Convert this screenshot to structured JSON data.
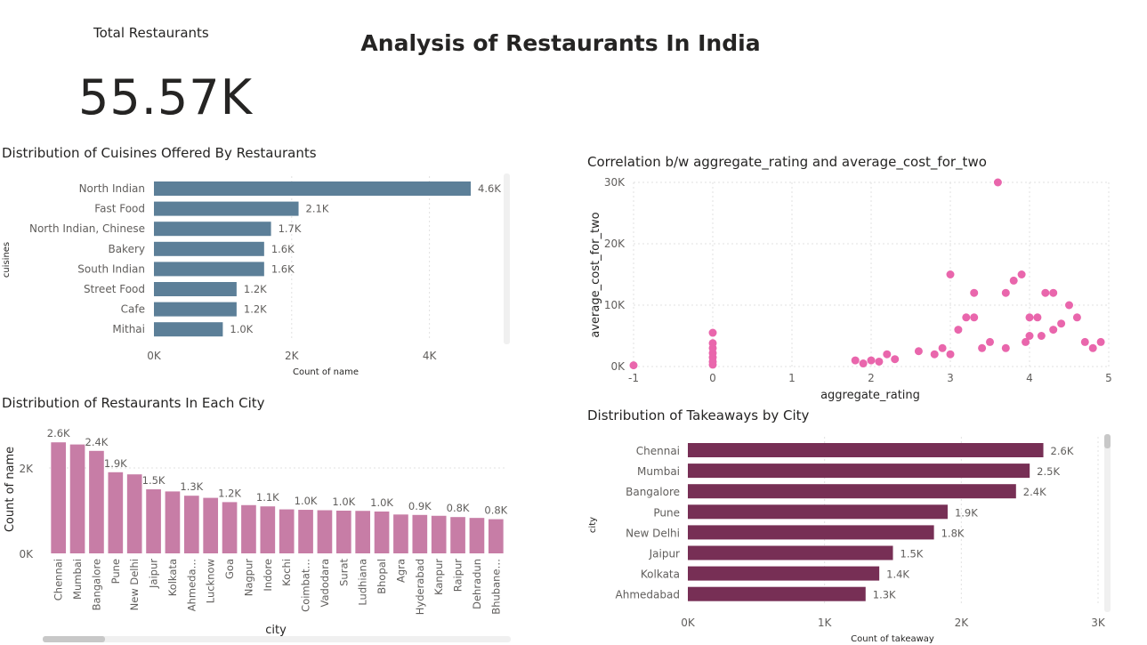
{
  "page": {
    "title": "Analysis of Restaurants In India"
  },
  "card": {
    "label": "Total Restaurants",
    "value": "55.57K"
  },
  "colors": {
    "cuisine_bar": "#5C7F98",
    "city_bar": "#C77DA6",
    "scatter_point": "#E966AC",
    "takeaway_bar": "#772F55",
    "grid": "#E1E1E1",
    "axis_text": "#605E5C"
  },
  "chart_data": [
    {
      "id": "cuisines",
      "type": "bar",
      "orientation": "horizontal",
      "title": "Distribution of Cuisines Offered By Restaurants",
      "xlabel": "Count of name",
      "ylabel": "cuisines",
      "categories": [
        "North Indian",
        "Fast Food",
        "North Indian, Chinese",
        "Bakery",
        "South Indian",
        "Street Food",
        "Cafe",
        "Mithai"
      ],
      "values": [
        4600,
        2100,
        1700,
        1600,
        1600,
        1200,
        1200,
        1000
      ],
      "data_labels": [
        "4.6K",
        "2.1K",
        "1.7K",
        "1.6K",
        "1.6K",
        "1.2K",
        "1.2K",
        "1.0K"
      ],
      "xticks": [
        0,
        2000,
        4000
      ],
      "xtick_labels": [
        "0K",
        "2K",
        "4K"
      ],
      "xlim": [
        0,
        5000
      ],
      "grid": true
    },
    {
      "id": "city",
      "type": "bar",
      "orientation": "vertical",
      "title": "Distribution of Restaurants In Each City",
      "xlabel": "city",
      "ylabel": "Count of name",
      "categories": [
        "Chennai",
        "Mumbai",
        "Bangalore",
        "Pune",
        "New Delhi",
        "Jaipur",
        "Kolkata",
        "Ahmeda…",
        "Lucknow",
        "Goa",
        "Nagpur",
        "Indore",
        "Kochi",
        "Coimbat…",
        "Vadodara",
        "Surat",
        "Ludhiana",
        "Bhopal",
        "Agra",
        "Hyderabad",
        "Kanpur",
        "Raipur",
        "Dehradun",
        "Bhubane…"
      ],
      "values": [
        2600,
        2550,
        2400,
        1900,
        1850,
        1500,
        1450,
        1350,
        1300,
        1200,
        1130,
        1100,
        1030,
        1020,
        1010,
        1000,
        995,
        980,
        910,
        900,
        880,
        850,
        830,
        800
      ],
      "data_labels": [
        "2.6K",
        "",
        "2.4K",
        "1.9K",
        "",
        "1.5K",
        "",
        "1.3K",
        "",
        "1.2K",
        "",
        "1.1K",
        "",
        "1.0K",
        "",
        "1.0K",
        "",
        "1.0K",
        "",
        "0.9K",
        "",
        "0.8K",
        "",
        "0.8K"
      ],
      "yticks": [
        0,
        2000
      ],
      "ytick_labels": [
        "0K",
        "2K"
      ],
      "ylim": [
        0,
        3000
      ],
      "grid": true
    },
    {
      "id": "scatter",
      "type": "scatter",
      "title": "Correlation b/w aggregate_rating and average_cost_for_two",
      "xlabel": "aggregate_rating",
      "ylabel": "average_cost_for_two",
      "xlim": [
        -1,
        5
      ],
      "ylim": [
        0,
        30000
      ],
      "xticks": [
        -1,
        0,
        1,
        2,
        3,
        4,
        5
      ],
      "xtick_labels": [
        "-1",
        "0",
        "1",
        "2",
        "3",
        "4",
        "5"
      ],
      "yticks": [
        0,
        10000,
        20000,
        30000
      ],
      "ytick_labels": [
        "0K",
        "10K",
        "20K",
        "30K"
      ],
      "grid": true,
      "points": [
        [
          -1,
          200
        ],
        [
          0,
          300
        ],
        [
          0,
          800
        ],
        [
          0,
          1500
        ],
        [
          0,
          2200
        ],
        [
          0,
          3000
        ],
        [
          0,
          3800
        ],
        [
          0,
          5500
        ],
        [
          1.8,
          1000
        ],
        [
          1.9,
          500
        ],
        [
          2.0,
          1000
        ],
        [
          2.1,
          800
        ],
        [
          2.2,
          2000
        ],
        [
          2.3,
          1200
        ],
        [
          2.6,
          2500
        ],
        [
          2.8,
          2000
        ],
        [
          2.9,
          3000
        ],
        [
          3.0,
          2000
        ],
        [
          3.1,
          6000
        ],
        [
          3.2,
          8000
        ],
        [
          3.3,
          8000
        ],
        [
          3.5,
          4000
        ],
        [
          3.6,
          30000
        ],
        [
          3.7,
          12000
        ],
        [
          3.8,
          14000
        ],
        [
          3.9,
          15000
        ],
        [
          3.95,
          4000
        ],
        [
          4.0,
          8000
        ],
        [
          4.1,
          8000
        ],
        [
          4.15,
          5000
        ],
        [
          4.2,
          12000
        ],
        [
          4.3,
          12000
        ],
        [
          4.4,
          7000
        ],
        [
          4.5,
          10000
        ],
        [
          4.6,
          8000
        ],
        [
          4.7,
          4000
        ],
        [
          4.8,
          3000
        ],
        [
          4.9,
          4000
        ],
        [
          3.0,
          15000
        ],
        [
          3.3,
          12000
        ],
        [
          4.3,
          6000
        ],
        [
          3.4,
          3000
        ],
        [
          3.7,
          3000
        ],
        [
          4.0,
          5000
        ]
      ]
    },
    {
      "id": "takeaway",
      "type": "bar",
      "orientation": "horizontal",
      "title": "Distribution of Takeaways by City",
      "xlabel": "Count of takeaway",
      "ylabel": "city",
      "categories": [
        "Chennai",
        "Mumbai",
        "Bangalore",
        "Pune",
        "New Delhi",
        "Jaipur",
        "Kolkata",
        "Ahmedabad"
      ],
      "values": [
        2600,
        2500,
        2400,
        1900,
        1800,
        1500,
        1400,
        1300
      ],
      "data_labels": [
        "2.6K",
        "2.5K",
        "2.4K",
        "1.9K",
        "1.8K",
        "1.5K",
        "1.4K",
        "1.3K"
      ],
      "xticks": [
        0,
        1000,
        2000,
        3000
      ],
      "xtick_labels": [
        "0K",
        "1K",
        "2K",
        "3K"
      ],
      "xlim": [
        0,
        3000
      ],
      "grid": true
    }
  ]
}
